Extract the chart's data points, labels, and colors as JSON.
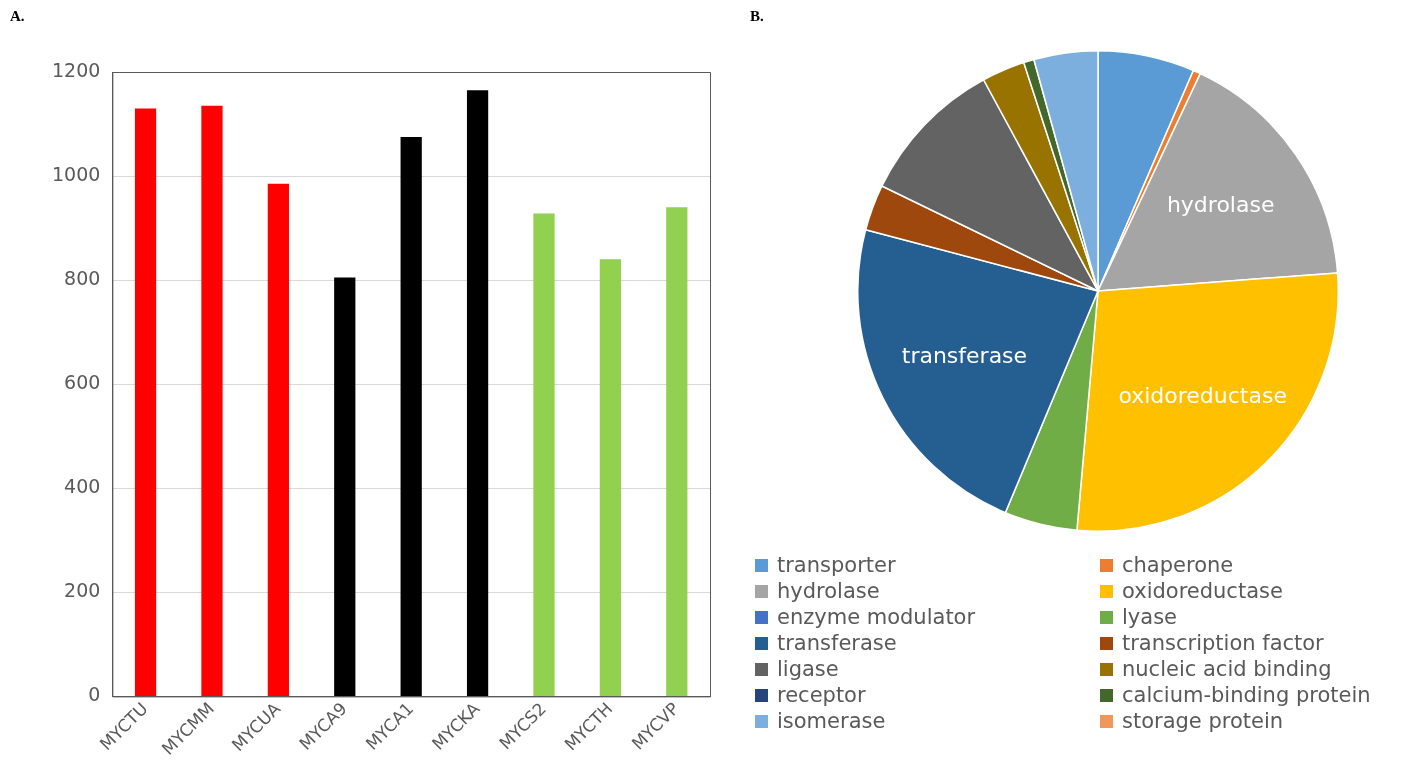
{
  "chart_data": [
    {
      "type": "bar",
      "title": "A.",
      "categories": [
        "MYCTU",
        "MYCMM",
        "MYCUA",
        "MYCA9",
        "MYCA1",
        "MYCKA",
        "MYCS2",
        "MYCTH",
        "MYCVP"
      ],
      "values": [
        1130,
        1135,
        985,
        805,
        1075,
        1165,
        928,
        840,
        940
      ],
      "colors": [
        "#ff0000",
        "#ff0000",
        "#ff0000",
        "#000000",
        "#000000",
        "#000000",
        "#92d050",
        "#92d050",
        "#92d050"
      ],
      "ylim": [
        0,
        1200
      ],
      "yticks": [
        0,
        200,
        400,
        600,
        800,
        1000,
        1200
      ],
      "grid": "y",
      "legend": false
    },
    {
      "type": "pie",
      "title": "B.",
      "categories": [
        "transporter",
        "chaperone",
        "hydrolase",
        "oxidoreductase",
        "enzyme modulator",
        "lyase",
        "transferase",
        "transcription factor",
        "ligase",
        "nucleic acid binding",
        "receptor",
        "calcium-binding protein",
        "isomerase",
        "storage protein"
      ],
      "values": [
        6.5,
        0.5,
        16.8,
        27.6,
        null,
        4.9,
        22.8,
        3.1,
        9.9,
        2.9,
        null,
        0.7,
        4.3,
        null
      ],
      "colors": [
        "#5b9bd5",
        "#ed7d31",
        "#a5a5a5",
        "#ffc000",
        "#4472c4",
        "#70ad47",
        "#255e91",
        "#9e480e",
        "#636363",
        "#997300",
        "#264478",
        "#43682b",
        "#7cafdd",
        "#f1975a"
      ],
      "value_labels": [
        null,
        null,
        "hydrolase",
        "oxidoreductase",
        null,
        null,
        "transferase",
        null,
        null,
        null,
        null,
        null,
        null,
        null
      ],
      "legend": "bottom"
    }
  ]
}
